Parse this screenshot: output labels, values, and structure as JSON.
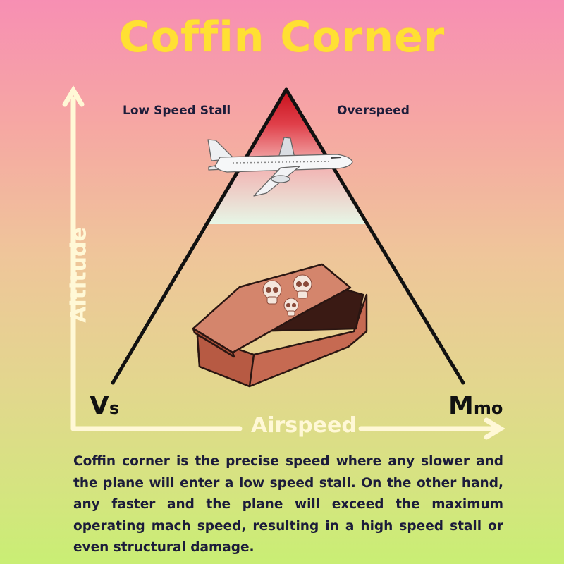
{
  "title": "Coffin Corner",
  "labels": {
    "low_speed_stall": "Low Speed Stall",
    "overspeed": "Overspeed",
    "vs_main": "V",
    "vs_sub": "s",
    "mmo_main": "M",
    "mmo_sub": "mo"
  },
  "axes": {
    "x_label": "Airspeed",
    "y_label": "Altitude"
  },
  "description": "Coffin corner is the precise speed where any slower and the plane will enter a low speed stall. On the other hand, any faster and the plane will exceed the maximum operating mach speed, resulting in a high speed stall or even structural damage.",
  "colors": {
    "title": "#ffe033",
    "axis": "#fff8d6",
    "danger_zone_top": "#d8141e",
    "coffin": "#c9735c",
    "text": "#1c1c3a"
  },
  "icons": [
    "airplane-icon",
    "coffin-icon",
    "skull-icon"
  ]
}
